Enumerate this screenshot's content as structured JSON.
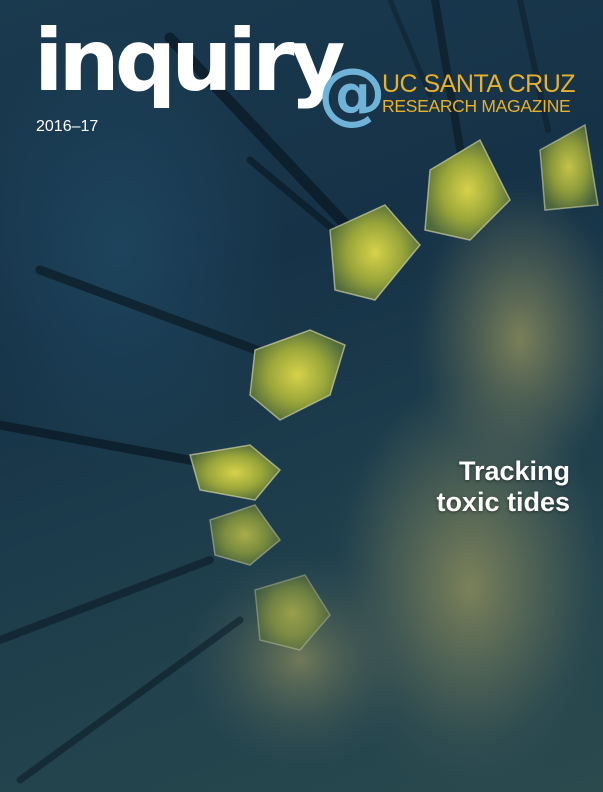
{
  "masthead": {
    "wordmark": "inquiry",
    "at_symbol": "@",
    "institution": "UC SANTA CRUZ",
    "subtitle": "RESEARCH MAGAZINE",
    "year": "2016–17"
  },
  "cover": {
    "headline_line1": "Tracking",
    "headline_line2": "toxic tides",
    "image": "microscope photograph of a chain-forming diatom with long spines"
  },
  "colors": {
    "wordmark": "#ffffff",
    "at_symbol": "#6fb4d8",
    "institution": "#e8b02b",
    "background": "#163247"
  }
}
